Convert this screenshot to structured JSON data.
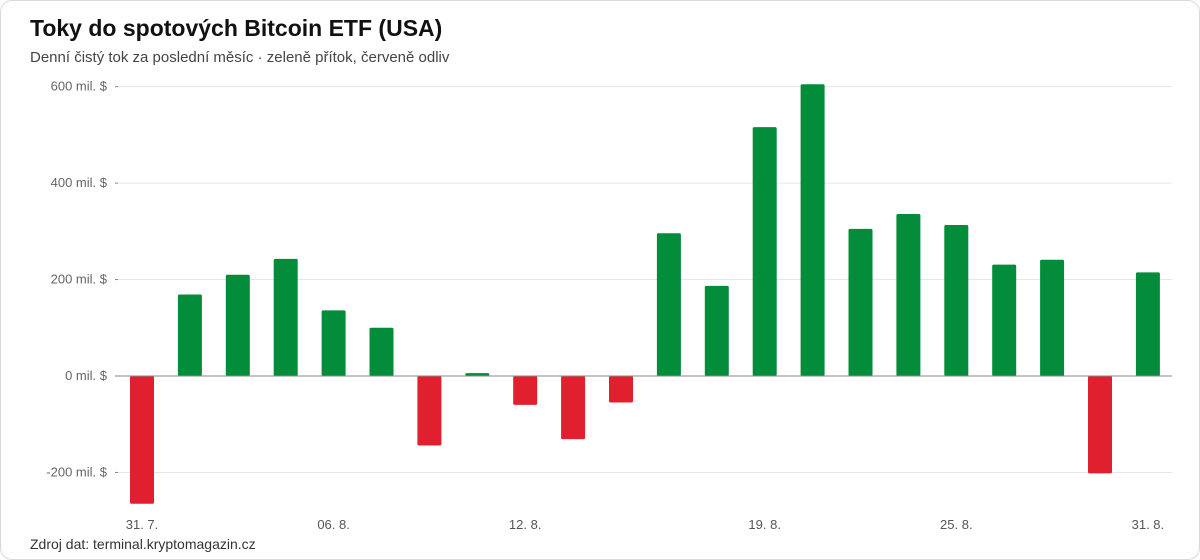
{
  "header": {
    "title": "Toky do spotových Bitcoin ETF (USA)",
    "subtitle": "Denní čistý tok za poslední měsíc · zeleně přítok, červeně odliv"
  },
  "footer": {
    "source": "Zdroj dat: terminal.kryptomagazin.cz"
  },
  "colors": {
    "inflow": "#038C3A",
    "outflow": "#E0202F",
    "grid": "#e6e6e6",
    "zero_axis": "#8a8a8a"
  },
  "chart_data": {
    "type": "bar",
    "title": "Toky do spotových Bitcoin ETF (USA)",
    "subtitle": "Denní čistý tok za poslední měsíc · zeleně přítok, červeně odliv",
    "xlabel": "",
    "ylabel": "",
    "ylim": [
      -250,
      600
    ],
    "yticks": [
      {
        "value": 600,
        "label": "600 mil. $"
      },
      {
        "value": 400,
        "label": "400 mil. $"
      },
      {
        "value": 200,
        "label": "200 mil. $"
      },
      {
        "value": 0,
        "label": "0 mil. $"
      },
      {
        "value": -200,
        "label": "-200 mil. $"
      }
    ],
    "xticks": [
      {
        "index": 0,
        "label": "31. 7."
      },
      {
        "index": 4,
        "label": "06. 8."
      },
      {
        "index": 8,
        "label": "12. 8."
      },
      {
        "index": 13,
        "label": "19. 8."
      },
      {
        "index": 17,
        "label": "25. 8."
      },
      {
        "index": 21,
        "label": "31. 8."
      }
    ],
    "grid": true,
    "unit": "mil. $",
    "series": [
      {
        "values": [
          -265,
          169,
          210,
          243,
          136,
          100,
          -144,
          6,
          -60,
          -131,
          -55,
          296,
          187,
          516,
          605,
          305,
          336,
          313,
          231,
          241,
          -202,
          215
        ]
      }
    ]
  }
}
